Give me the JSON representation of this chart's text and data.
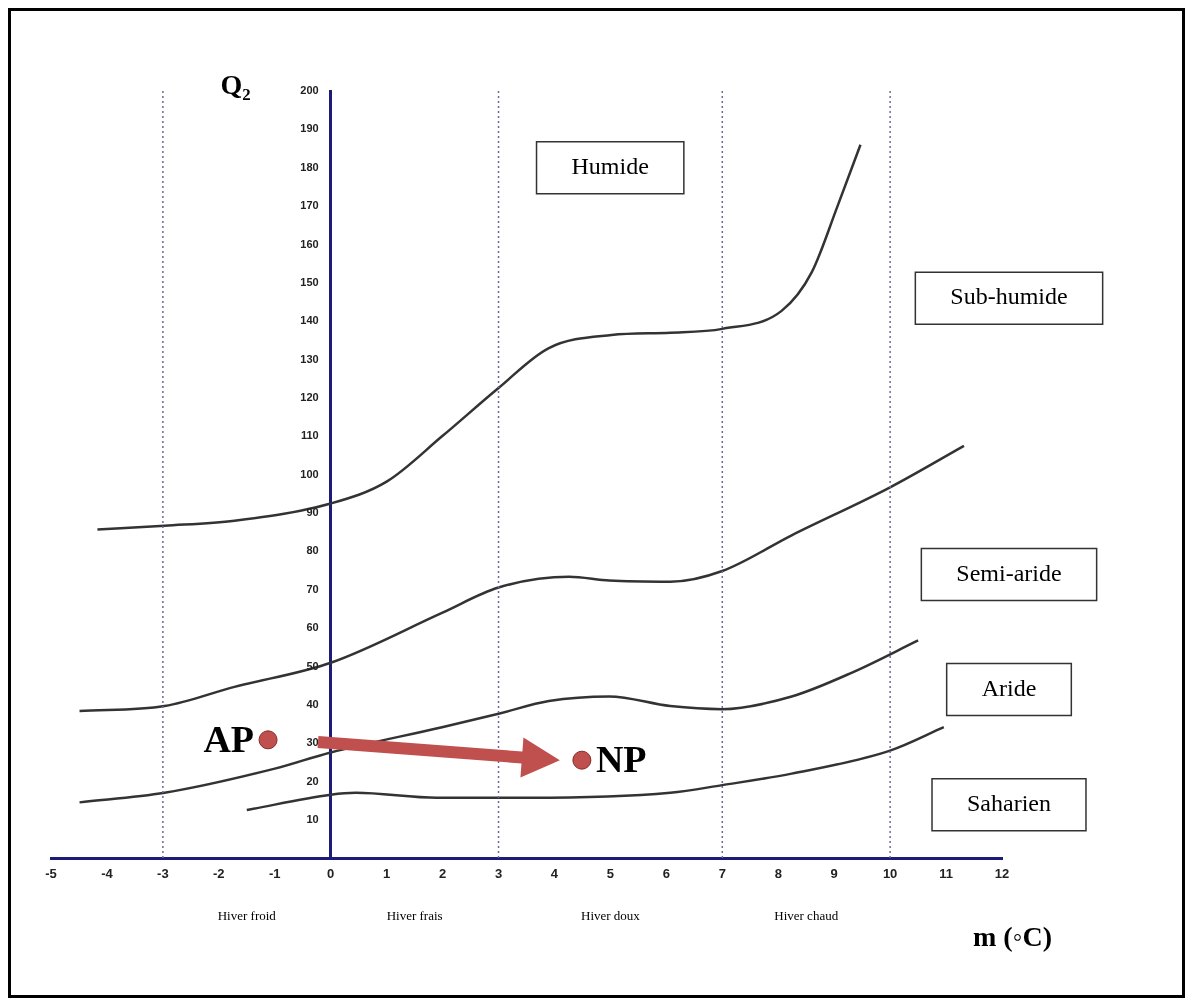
{
  "chart_data": {
    "type": "line",
    "xlabel": "m (◦C)",
    "ylabel": "Q₂",
    "xlim": [
      -5,
      12
    ],
    "xticks": [
      -5,
      -4,
      -3,
      -2,
      -1,
      0,
      1,
      2,
      3,
      4,
      5,
      6,
      7,
      8,
      9,
      10,
      11,
      12
    ],
    "ylim": [
      0,
      200
    ],
    "yticks": [
      10,
      20,
      30,
      40,
      50,
      60,
      70,
      80,
      90,
      100,
      110,
      120,
      130,
      140,
      150,
      160,
      170,
      180,
      190,
      200
    ],
    "grid": false,
    "legend": false,
    "marker": "none",
    "series": [
      {
        "color": "#333333",
        "x": [
          -4.17,
          -2.97,
          -1.72,
          0,
          1,
          1.99,
          3,
          3.9,
          5.02,
          6.07,
          7,
          8.06,
          8.6,
          9.06,
          9.47
        ],
        "values": [
          85.7,
          86.7,
          88,
          92.5,
          98.2,
          110,
          122.6,
          133,
          136.4,
          137,
          138,
          142.7,
          152.8,
          170,
          186
        ]
      },
      {
        "color": "#333333",
        "x": [
          -4.49,
          -2.97,
          -1.72,
          0,
          1.99,
          3,
          4.26,
          4.98,
          6.07,
          7,
          8.24,
          10,
          11.32
        ],
        "values": [
          38.4,
          39.7,
          44.7,
          51,
          64,
          70.6,
          73.4,
          72.4,
          72.1,
          74.9,
          84.2,
          96.7,
          107.5
        ]
      },
      {
        "color": "#333333",
        "x": [
          -4.49,
          -2.97,
          -1,
          0,
          1.99,
          3,
          3.9,
          4.98,
          6.07,
          7,
          8.24,
          9.33,
          10.5
        ],
        "values": [
          14.6,
          17.1,
          23.4,
          27.6,
          34.2,
          37.7,
          41,
          42.2,
          39.7,
          38.9,
          42.2,
          48.5,
          56.8
        ]
      },
      {
        "color": "#333333",
        "x": [
          -1.5,
          0,
          0.45,
          1.9,
          3.53,
          6.07,
          7,
          8.24,
          10,
          10.96
        ],
        "values": [
          12.6,
          16.6,
          17.1,
          15.8,
          15.8,
          17.1,
          19.1,
          22.1,
          28.1,
          34.2
        ]
      },
      {
        "type": "scatter",
        "name": "AP",
        "marker": "circle",
        "color": "#c0504d",
        "x": [
          -1.12
        ],
        "values": [
          30.9
        ]
      },
      {
        "type": "scatter",
        "name": "NP",
        "marker": "circle",
        "color": "#c0504d",
        "x": [
          4.49
        ],
        "values": [
          25.6
        ]
      }
    ],
    "ref_lines": [
      {
        "axis": "x",
        "value": -3,
        "color": "#6a6a9a",
        "line_style": "dotted"
      },
      {
        "axis": "x",
        "value": 3,
        "color": "#6a6a9a",
        "line_style": "dotted"
      },
      {
        "axis": "x",
        "value": 7,
        "color": "#6a6a9a",
        "line_style": "dotted"
      },
      {
        "axis": "x",
        "value": 10,
        "color": "#6a6a9a",
        "line_style": "dotted"
      }
    ],
    "annotations": [
      "Hiver froid",
      "Hiver frais",
      "Hiver doux",
      "Hiver chaud",
      "Humide",
      "Sub-humide",
      "Semi-aride",
      "Aride",
      "Saharien"
    ]
  }
}
